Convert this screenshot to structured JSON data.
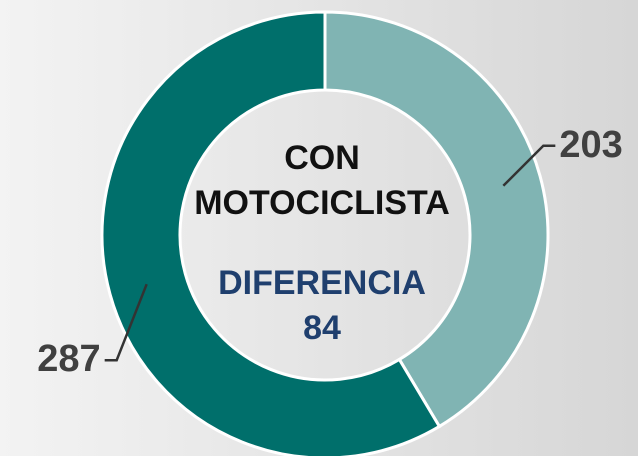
{
  "chart_data": {
    "type": "donut",
    "title_lines": [
      "CON",
      "MOTOCICLISTA"
    ],
    "annotation": "DIFERENCIA",
    "annotation_value": 84,
    "values": [
      203,
      287
    ],
    "colors": [
      "#80b4b3",
      "#006f6b"
    ]
  }
}
